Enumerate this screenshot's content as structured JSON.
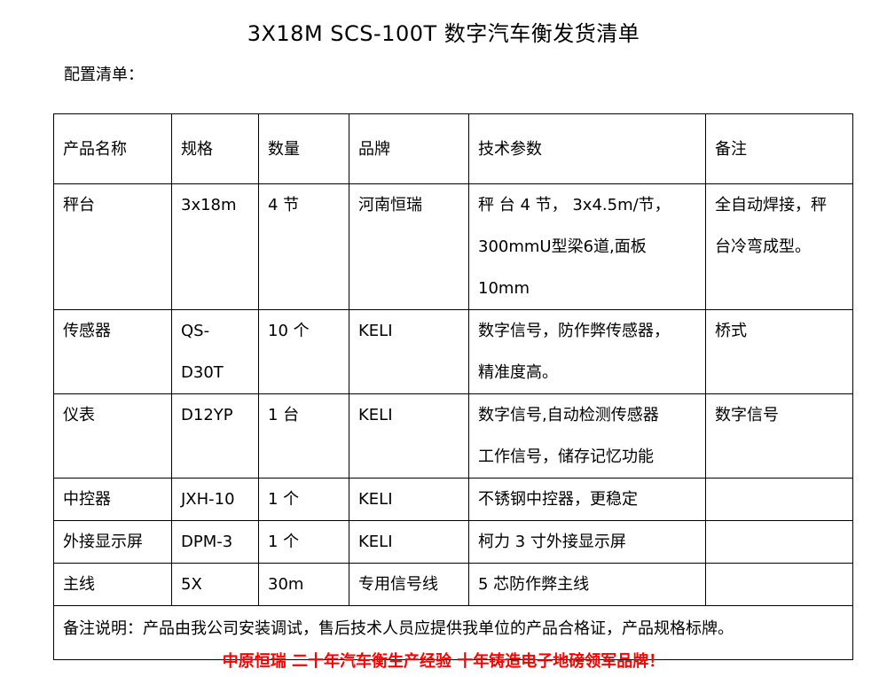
{
  "title": "3X18M SCS-100T 数字汽车衡发货清单",
  "subtitle": "配置清单：",
  "table": {
    "headers": [
      "产品名称",
      "规格",
      "数量",
      "品牌",
      "技术参数",
      "备注"
    ],
    "rows": [
      {
        "cells": [
          [
            "秤台"
          ],
          [
            "3x18m"
          ],
          [
            "4 节"
          ],
          [
            "河南恒瑞"
          ],
          [
            "秤 台 4 节， 3x4.5m/节，",
            "300mmU型梁6道,面板10mm"
          ],
          [
            "全自动焊接，秤",
            "台冷弯成型。"
          ]
        ]
      },
      {
        "cells": [
          [
            "传感器"
          ],
          [
            "QS-D30T"
          ],
          [
            "10 个"
          ],
          [
            "KELI"
          ],
          [
            "数字信号，防作弊传感器，",
            "精准度高。"
          ],
          [
            "桥式"
          ]
        ]
      },
      {
        "cells": [
          [
            "仪表"
          ],
          [
            "D12YP"
          ],
          [
            "1 台"
          ],
          [
            "KELI"
          ],
          [
            "数字信号,自动检测传感器",
            "工作信号，储存记忆功能"
          ],
          [
            "数字信号"
          ]
        ]
      },
      {
        "cells": [
          [
            "中控器"
          ],
          [
            "JXH-10"
          ],
          [
            "1 个"
          ],
          [
            "KELI"
          ],
          [
            "不锈钢中控器，更稳定"
          ],
          [
            ""
          ]
        ]
      },
      {
        "cells": [
          [
            "外接显示屏"
          ],
          [
            "DPM-3"
          ],
          [
            "1 个"
          ],
          [
            "KELI"
          ],
          [
            "柯力 3 寸外接显示屏"
          ],
          [
            ""
          ]
        ]
      },
      {
        "cells": [
          [
            "主线"
          ],
          [
            "5X"
          ],
          [
            "30m"
          ],
          [
            "专用信号线"
          ],
          [
            "5 芯防作弊主线"
          ],
          [
            ""
          ]
        ]
      }
    ],
    "note": "备注说明：产品由我公司安装调试，售后技术人员应提供我单位的产品合格证，产品规格标牌。"
  },
  "footer": "中原恒瑞  二十年汽车衡生产经验  十年铸造电子地磅领军品牌！",
  "colors": {
    "footer": "#ff0000"
  }
}
